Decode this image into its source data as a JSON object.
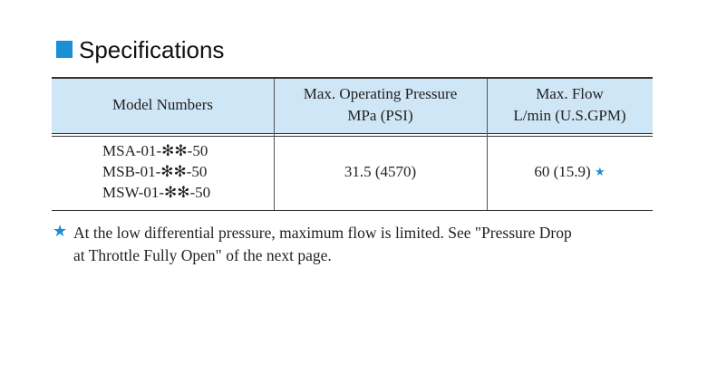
{
  "header": {
    "title": "Specifications"
  },
  "table": {
    "columns": [
      [
        "Model Numbers"
      ],
      [
        "Max. Operating Pressure",
        "MPa (PSI)"
      ],
      [
        "Max. Flow",
        "L/min (U.S.GPM)"
      ]
    ],
    "rows": [
      [
        [
          "MSA-01-✻✻-50",
          "MSB-01-✻✻-50",
          "MSW-01-✻✻-50"
        ],
        "31.5 (4570)",
        "60 (15.9)"
      ]
    ],
    "flow_mark": "★"
  },
  "note": {
    "mark": "★",
    "lines": [
      "At the low differential pressure, maximum flow is limited. See \"Pressure Drop",
      "at Throttle Fully Open\" of the next page."
    ]
  }
}
